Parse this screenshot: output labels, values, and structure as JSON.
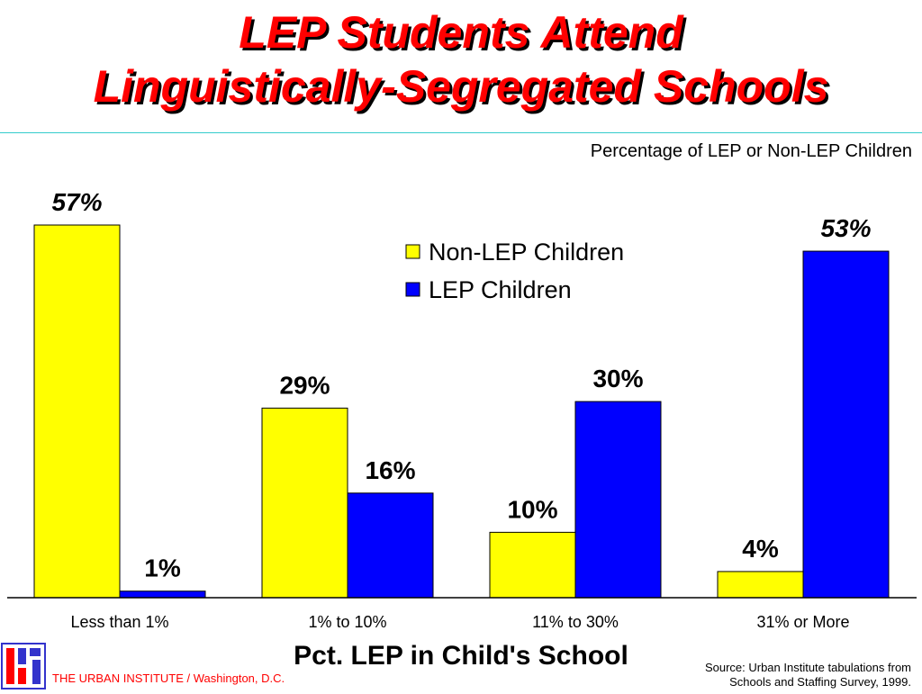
{
  "slide": {
    "title_lines": [
      "LEP Students Attend",
      "Linguistically-Segregated Schools"
    ],
    "subtitle": "Percentage of LEP or Non-LEP Children",
    "footer_org": "THE URBAN INSTITUTE / Washington, D.C.",
    "source_lines": [
      "Source:  Urban Institute tabulations from",
      "Schools and Staffing Survey, 1999."
    ],
    "logo_icon": "urban-institute-logo-icon"
  },
  "chart_data": {
    "type": "bar",
    "title": "LEP Students Attend Linguistically-Segregated Schools",
    "subtitle": "Percentage of LEP or Non-LEP Children",
    "xlabel": "Pct. LEP in Child's School",
    "ylabel": "",
    "categories": [
      "Less than 1%",
      "1% to 10%",
      "11% to 30%",
      "31% or More"
    ],
    "series": [
      {
        "name": "Non-LEP Children",
        "color": "#ffff00",
        "values": [
          57,
          29,
          10,
          4
        ],
        "labels": [
          "57%",
          "29%",
          "10%",
          "4%"
        ]
      },
      {
        "name": "LEP Children",
        "color": "#0000ff",
        "values": [
          1,
          16,
          30,
          53
        ],
        "labels": [
          "1%",
          "16%",
          "30%",
          "53%"
        ]
      }
    ],
    "italic_labels": [
      [
        true,
        false,
        false,
        false
      ],
      [
        false,
        false,
        false,
        true
      ]
    ],
    "ylim": [
      0,
      57
    ],
    "grid": false,
    "legend": {
      "position": "top-center"
    }
  }
}
